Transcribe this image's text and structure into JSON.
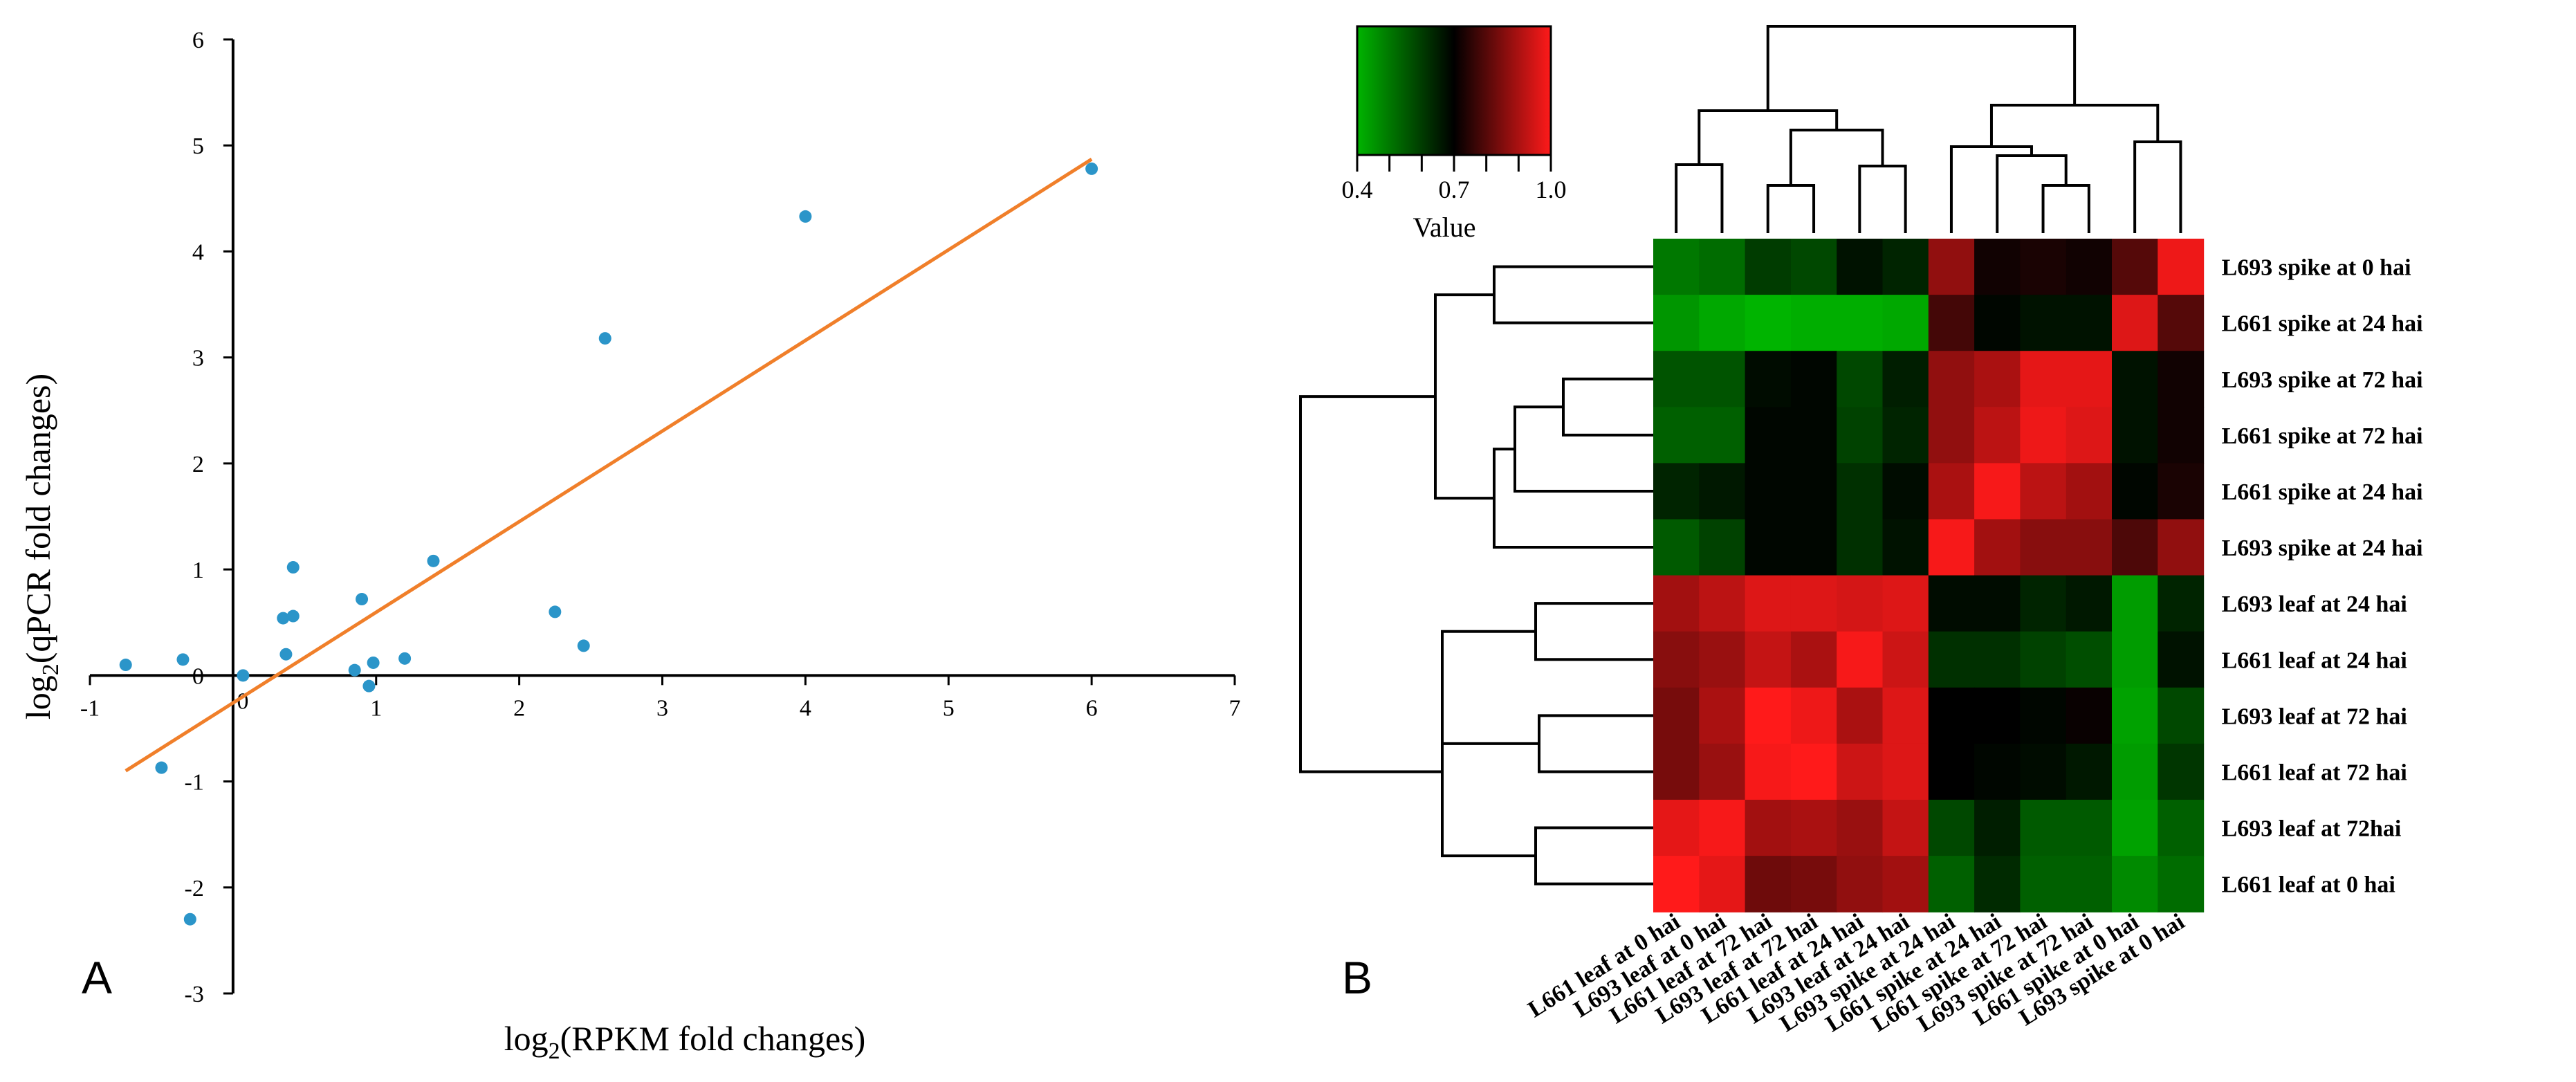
{
  "chart_data": [
    {
      "type": "scatter",
      "panel_label": "A",
      "xlabel_main": "log",
      "xlabel_sub": "2",
      "xlabel_rest": "(RPKM fold changes)",
      "ylabel_main": "log",
      "ylabel_sub": "2",
      "ylabel_rest": "(qPCR fold changes)",
      "xlim": [
        -1,
        7
      ],
      "ylim": [
        -3,
        6
      ],
      "xticks": [
        -1,
        0,
        1,
        2,
        3,
        4,
        5,
        6,
        7
      ],
      "yticks": [
        -3,
        -2,
        -1,
        0,
        1,
        2,
        3,
        4,
        5,
        6
      ],
      "point_color": "#2b95c9",
      "trend_color": "#f07f2a",
      "points": [
        {
          "x": -0.75,
          "y": 0.1
        },
        {
          "x": -0.5,
          "y": -0.87
        },
        {
          "x": -0.35,
          "y": 0.15
        },
        {
          "x": -0.3,
          "y": -2.3
        },
        {
          "x": 0.07,
          "y": 0.0
        },
        {
          "x": 0.35,
          "y": 0.54
        },
        {
          "x": 0.37,
          "y": 0.2
        },
        {
          "x": 0.42,
          "y": 0.56
        },
        {
          "x": 0.42,
          "y": 1.02
        },
        {
          "x": 0.85,
          "y": 0.05
        },
        {
          "x": 0.9,
          "y": 0.72
        },
        {
          "x": 0.95,
          "y": -0.1
        },
        {
          "x": 0.98,
          "y": 0.12
        },
        {
          "x": 1.2,
          "y": 0.16
        },
        {
          "x": 1.4,
          "y": 1.08
        },
        {
          "x": 2.25,
          "y": 0.6
        },
        {
          "x": 2.45,
          "y": 0.28
        },
        {
          "x": 2.6,
          "y": 3.18
        },
        {
          "x": 4.0,
          "y": 4.33
        },
        {
          "x": 6.0,
          "y": 4.78
        }
      ],
      "trendline": {
        "x": [
          -0.75,
          6.0
        ],
        "y": [
          -0.9,
          4.87
        ]
      }
    },
    {
      "type": "heatmap",
      "panel_label": "B",
      "colorbar": {
        "title": "Value",
        "ticks": [
          "0.4",
          "0.7",
          "1.0"
        ],
        "low_color": "#00b400",
        "mid_color": "#000000",
        "high_color": "#ff1a1a"
      },
      "rows": [
        "L693 spike at 0 hai",
        "L661 spike at 24 hai",
        "L693 spike at 72 hai",
        "L661 spike at 72 hai",
        "L661 spike at 24 hai",
        "L693 spike at 24 hai",
        "L693 leaf at 24 hai",
        "L661 leaf at 24 hai",
        "L693 leaf at 72 hai",
        "L661 leaf at 72 hai",
        "L693 leaf at 72hai",
        "L661 leaf at 0 hai"
      ],
      "columns": [
        "L661 leaf at 0 hai",
        "L693 leaf at 0 hai",
        "L661 leaf at 72 hai",
        "L693 leaf at 72 hai",
        "L661 leaf at 24 hai",
        "L693 leaf at 24 hai",
        "L693 spike at 24 hai",
        "L661 spike at 24 hai",
        "L661 spike at 72 hai",
        "L693 spike at 72 hai",
        "L661 spike at 0 hai",
        "L693 spike at 0 hai"
      ],
      "values": [
        [
          0.5,
          0.52,
          0.6,
          0.58,
          0.67,
          0.64,
          0.87,
          0.72,
          0.73,
          0.72,
          0.8,
          0.98
        ],
        [
          0.45,
          0.42,
          0.4,
          0.41,
          0.41,
          0.42,
          0.78,
          0.69,
          0.67,
          0.67,
          0.96,
          0.8
        ],
        [
          0.56,
          0.56,
          0.68,
          0.69,
          0.58,
          0.65,
          0.87,
          0.9,
          0.97,
          0.97,
          0.67,
          0.72
        ],
        [
          0.54,
          0.54,
          0.69,
          0.69,
          0.59,
          0.64,
          0.87,
          0.92,
          0.98,
          0.96,
          0.67,
          0.72
        ],
        [
          0.64,
          0.66,
          0.69,
          0.69,
          0.62,
          0.68,
          0.9,
          0.99,
          0.92,
          0.89,
          0.69,
          0.73
        ],
        [
          0.55,
          0.59,
          0.69,
          0.69,
          0.62,
          0.67,
          0.99,
          0.89,
          0.86,
          0.86,
          0.79,
          0.87
        ],
        [
          0.89,
          0.92,
          0.96,
          0.96,
          0.95,
          0.96,
          0.68,
          0.68,
          0.64,
          0.66,
          0.44,
          0.64
        ],
        [
          0.86,
          0.88,
          0.93,
          0.9,
          0.99,
          0.94,
          0.62,
          0.62,
          0.59,
          0.57,
          0.44,
          0.67
        ],
        [
          0.84,
          0.9,
          1.0,
          0.98,
          0.9,
          0.96,
          0.7,
          0.7,
          0.69,
          0.71,
          0.43,
          0.58
        ],
        [
          0.84,
          0.88,
          0.99,
          1.0,
          0.94,
          0.96,
          0.7,
          0.69,
          0.68,
          0.66,
          0.44,
          0.61
        ],
        [
          0.97,
          0.99,
          0.89,
          0.9,
          0.88,
          0.93,
          0.58,
          0.65,
          0.55,
          0.55,
          0.43,
          0.54
        ],
        [
          1.0,
          0.97,
          0.83,
          0.84,
          0.87,
          0.89,
          0.54,
          0.63,
          0.54,
          0.54,
          0.47,
          0.52
        ]
      ]
    }
  ]
}
